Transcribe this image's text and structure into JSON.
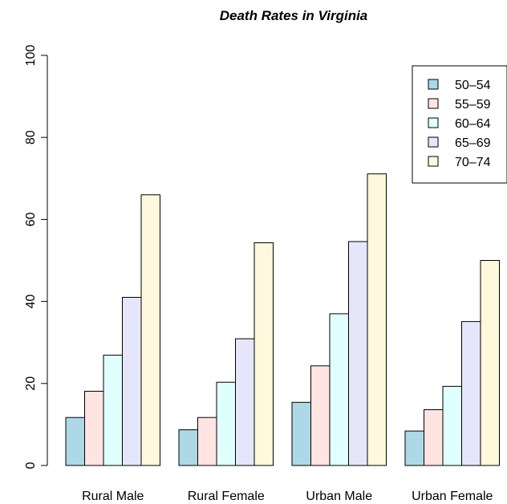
{
  "chart_data": {
    "type": "bar",
    "title": "Death Rates in Virginia",
    "xlabel": "",
    "ylabel": "",
    "categories": [
      "Rural Male",
      "Rural Female",
      "Urban Male",
      "Urban Female"
    ],
    "series": [
      {
        "name": "50–54",
        "values": [
          11.7,
          8.7,
          15.4,
          8.4
        ],
        "color": "#add8e6"
      },
      {
        "name": "55–59",
        "values": [
          18.1,
          11.7,
          24.3,
          13.6
        ],
        "color": "#ffe4e1"
      },
      {
        "name": "60–64",
        "values": [
          26.9,
          20.3,
          37.0,
          19.3
        ],
        "color": "#e0ffff"
      },
      {
        "name": "65–69",
        "values": [
          41.0,
          30.9,
          54.6,
          35.1
        ],
        "color": "#e6e6fa"
      },
      {
        "name": "70–74",
        "values": [
          66.0,
          54.3,
          71.1,
          50.0
        ],
        "color": "#fff8dc"
      }
    ],
    "ylim": [
      0,
      100
    ],
    "yticks": [
      0,
      20,
      40,
      60,
      80,
      100
    ],
    "grid": false,
    "legend_position": "top-right"
  }
}
